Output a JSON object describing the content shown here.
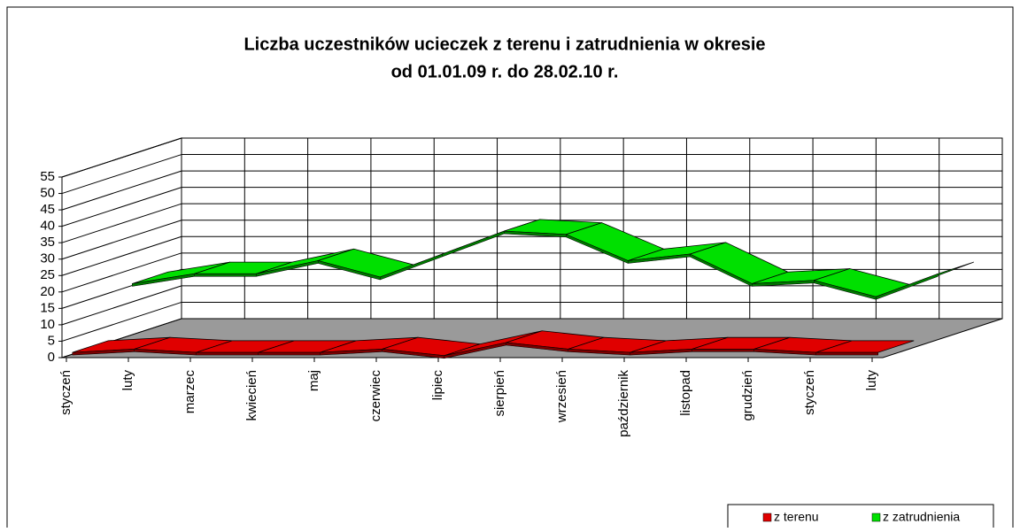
{
  "chart_data": {
    "type": "line3d",
    "title": "Liczba uczestników ucieczek z terenu i zatrudnienia w okresie",
    "subtitle": "od  01.01.09 r.  do  28.02.10 r.",
    "categories": [
      "styczeń",
      "luty",
      "marzec",
      "kwiecień",
      "maj",
      "czerwiec",
      "lipiec",
      "sierpień",
      "wrzesień",
      "październik",
      "listopad",
      "grudzień",
      "styczeń",
      "luty"
    ],
    "series": [
      {
        "name": "z terenu",
        "color": "#e00000",
        "values": [
          1,
          2,
          1,
          1,
          1,
          2,
          0,
          4,
          2,
          1,
          2,
          2,
          1,
          1
        ]
      },
      {
        "name": "z zatrudnienia",
        "color": "#00e000",
        "values": [
          16,
          19,
          19,
          23,
          18,
          25,
          32,
          31,
          23,
          25,
          16,
          17,
          12,
          19
        ]
      }
    ],
    "ylim": [
      0,
      55
    ],
    "yticks": [
      0,
      5,
      10,
      15,
      20,
      25,
      30,
      35,
      40,
      45,
      50,
      55
    ],
    "grid": true,
    "legend": "bottom-right"
  }
}
